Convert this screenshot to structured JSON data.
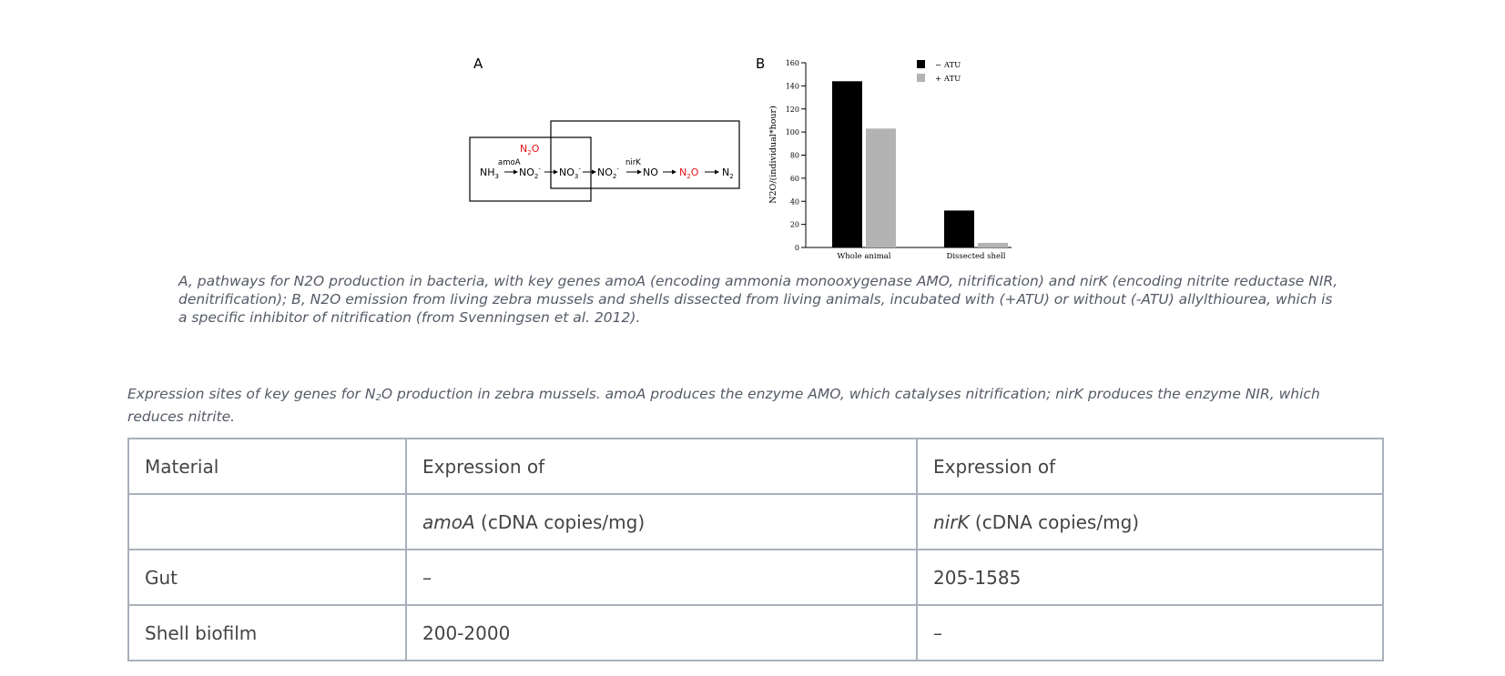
{
  "panel_a": {
    "label": "A",
    "diagram": {
      "nh3": "NH",
      "nh3_sub": "3",
      "no2a": "NO",
      "no2a_sub": "2",
      "no2a_sup": "-",
      "no3": "NO",
      "no3_sub": "3",
      "no3_sup": "-",
      "no2b": "NO",
      "no2b_sub": "2",
      "no2b_sup": "-",
      "no": "NO",
      "n2o_mid": "N",
      "n2o_mid_sub": "2",
      "n2o_mid_tail": "O",
      "n2": "N",
      "n2_sub": "2",
      "n2o_top": "N",
      "n2o_top_sub": "2",
      "n2o_top_tail": "O",
      "gene_amoa": "amoA",
      "gene_nirk": "nirK",
      "highlight_color": "#e8141b"
    }
  },
  "panel_b": {
    "label": "B",
    "legend": [
      {
        "label": "− ATU",
        "color": "#000000"
      },
      {
        "label": "+ ATU",
        "color": "#b3b3b3"
      }
    ]
  },
  "chart_data": {
    "type": "bar",
    "categories": [
      "Whole animal",
      "Dissected shell"
    ],
    "series": [
      {
        "name": "− ATU",
        "values": [
          144,
          32
        ],
        "color": "#000000"
      },
      {
        "name": "+ ATU",
        "values": [
          103,
          4
        ],
        "color": "#b3b3b3"
      }
    ],
    "title": "",
    "xlabel": "",
    "ylabel": "N2O/(individual*hour)",
    "ylim": [
      0,
      160
    ],
    "yticks": [
      0,
      20,
      40,
      60,
      80,
      100,
      120,
      140,
      160
    ],
    "legend_position": "top-right",
    "grid": false
  },
  "figure_caption": "A, pathways for N2O production in bacteria, with key genes amoA (encoding ammonia monooxygenase AMO, nitrification) and nirK (encoding nitrite reductase NIR, denitrification); B, N2O emission from living zebra mussels and shells dissected from living animals, incubated with (+ATU) or without (-ATU) allylthiourea, which is a specific inhibitor of nitrification (from Svenningsen et al. 2012).",
  "table_caption": {
    "part1": "Expression sites of key genes for N",
    "sub": "2",
    "part2": "O production in zebra mussels. amoA produces the enzyme AMO, which catalyses nitrification; nirK produces the enzyme NIR, which reduces nitrite."
  },
  "table": {
    "header": [
      "Material",
      "Expression of",
      "Expression of"
    ],
    "units_row": {
      "col1": "",
      "col2_gene": "amoA",
      "col2_unit": " (cDNA copies/mg)",
      "col3_gene": "nirK",
      "col3_unit": " (cDNA copies/mg)"
    },
    "rows": [
      [
        "Gut",
        "–",
        "205-1585"
      ],
      [
        "Shell biofilm",
        "200-2000",
        "–"
      ]
    ]
  }
}
